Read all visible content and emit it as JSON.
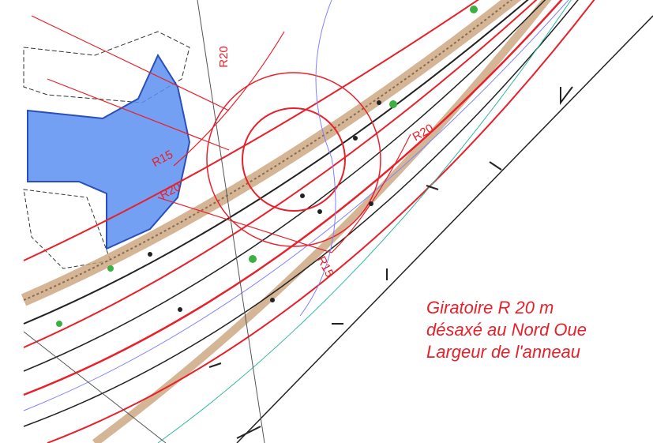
{
  "labels": [
    "R20",
    "R15",
    "R20",
    "R20",
    "R15"
  ],
  "caption": [
    "Giratoire R 20 m",
    "désaxé au Nord Oue",
    "Largeur de l'anneau"
  ]
}
